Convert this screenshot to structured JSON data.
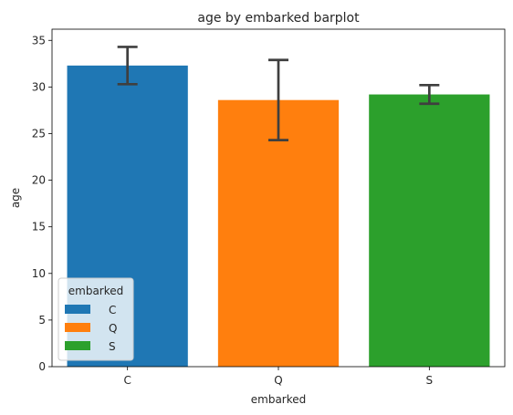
{
  "chart_data": {
    "type": "bar",
    "title": "age by embarked barplot",
    "xlabel": "embarked",
    "ylabel": "age",
    "categories": [
      "C",
      "Q",
      "S"
    ],
    "values": [
      32.3,
      28.6,
      29.2
    ],
    "error_bars": [
      {
        "low": 30.3,
        "high": 34.3
      },
      {
        "low": 24.3,
        "high": 32.9
      },
      {
        "low": 28.2,
        "high": 30.2
      }
    ],
    "colors": [
      "#1f77b4",
      "#ff7f0e",
      "#2ca02c"
    ],
    "ylim": [
      0,
      36.2
    ],
    "yticks": [
      0,
      5,
      10,
      15,
      20,
      25,
      30,
      35
    ],
    "grid": false,
    "legend": {
      "title": "embarked",
      "placement": "lower-left",
      "entries": [
        "C",
        "Q",
        "S"
      ]
    }
  }
}
